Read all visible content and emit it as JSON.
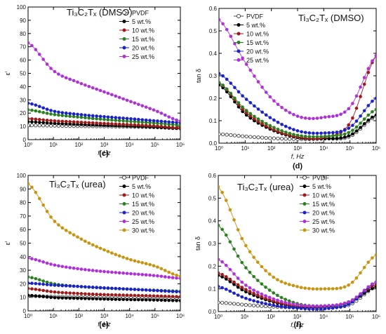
{
  "chart_data": [
    {
      "type": "scatter",
      "panel_label": "(c)",
      "title": "Ti₃C₂Tₓ (DMSO)",
      "xlabel": "f, Hz",
      "ylabel": "ε′",
      "x_scale": "log",
      "xlim": [
        1,
        1000000
      ],
      "ylim": [
        0,
        100
      ],
      "yticks": [
        0,
        10,
        20,
        30,
        40,
        50,
        60,
        70,
        80,
        90,
        100
      ],
      "xtick_labels": [
        "10⁰",
        "10¹",
        "10²",
        "10³",
        "10⁴",
        "10⁵",
        "10⁶"
      ],
      "legend_position": "top-right",
      "series": [
        {
          "name": "PVDF",
          "color": "#444444",
          "marker": "open",
          "x": [
            1,
            10,
            100,
            1000,
            10000,
            100000,
            1000000
          ],
          "y": [
            10.8,
            10.5,
            10.2,
            10.0,
            9.7,
            9.3,
            8.5
          ]
        },
        {
          "name": "5 wt.%",
          "color": "#000000",
          "marker": "filled",
          "x": [
            1,
            10,
            100,
            1000,
            10000,
            100000,
            1000000
          ],
          "y": [
            13.5,
            12.3,
            11.5,
            10.8,
            10.2,
            9.5,
            8.5
          ]
        },
        {
          "name": "10 wt.%",
          "color": "#a01818",
          "marker": "filled",
          "x": [
            1,
            10,
            100,
            1000,
            10000,
            100000,
            1000000
          ],
          "y": [
            15.8,
            14.2,
            13.2,
            12.2,
            11.3,
            10.3,
            8.8
          ]
        },
        {
          "name": "15 wt.%",
          "color": "#2a7f1f",
          "marker": "filled",
          "x": [
            1,
            10,
            100,
            1000,
            10000,
            100000,
            1000000
          ],
          "y": [
            22.5,
            19.0,
            17.0,
            15.2,
            13.8,
            12.5,
            11.0
          ]
        },
        {
          "name": "20 wt.%",
          "color": "#1a22c8",
          "marker": "filled",
          "x": [
            1,
            10,
            100,
            1000,
            10000,
            100000,
            1000000
          ],
          "y": [
            27.5,
            21.5,
            19.0,
            17.3,
            15.8,
            14.2,
            12.8
          ]
        },
        {
          "name": "25 wt.%",
          "color": "#b030d8",
          "marker": "filled",
          "x": [
            1,
            10,
            100,
            1000,
            10000,
            100000,
            1000000
          ],
          "y": [
            73.0,
            52.0,
            43.0,
            36.0,
            29.0,
            22.0,
            14.0
          ]
        }
      ]
    },
    {
      "type": "scatter",
      "panel_label": "(d)",
      "title": "Ti₃C₂Tₓ (DMSO)",
      "xlabel": "f, Hz",
      "ylabel": "tan δ",
      "x_scale": "log",
      "xlim": [
        1,
        1000000
      ],
      "ylim": [
        0,
        0.6
      ],
      "yticks": [
        0.0,
        0.1,
        0.2,
        0.3,
        0.4,
        0.5,
        0.6
      ],
      "ytick_labels": [
        "0.0",
        "0.1",
        "0.2",
        "0.3",
        "0.4",
        "0.5",
        "0.6"
      ],
      "xtick_labels": [
        "10⁰",
        "10¹",
        "10²",
        "10³",
        "10⁴",
        "10⁵",
        "10⁶"
      ],
      "legend_position": "top-left",
      "series": [
        {
          "name": "PVDF",
          "color": "#444444",
          "marker": "open",
          "x": [
            1,
            10,
            100,
            1000,
            10000,
            100000,
            1000000
          ],
          "y": [
            0.04,
            0.03,
            0.022,
            0.018,
            0.02,
            0.03,
            0.12
          ]
        },
        {
          "name": "5 wt.%",
          "color": "#000000",
          "marker": "filled",
          "x": [
            1,
            10,
            100,
            1000,
            10000,
            100000,
            1000000
          ],
          "y": [
            0.26,
            0.13,
            0.06,
            0.025,
            0.02,
            0.035,
            0.125
          ]
        },
        {
          "name": "10 wt.%",
          "color": "#a01818",
          "marker": "filled",
          "x": [
            1,
            10,
            100,
            1000,
            10000,
            100000,
            1000000
          ],
          "y": [
            0.27,
            0.14,
            0.065,
            0.028,
            0.025,
            0.09,
            0.39
          ]
        },
        {
          "name": "15 wt.%",
          "color": "#2a7f1f",
          "marker": "filled",
          "x": [
            1,
            10,
            100,
            1000,
            10000,
            100000,
            1000000
          ],
          "y": [
            0.27,
            0.15,
            0.075,
            0.035,
            0.03,
            0.05,
            0.15
          ]
        },
        {
          "name": "20 wt.%",
          "color": "#1a22c8",
          "marker": "filled",
          "x": [
            1,
            10,
            100,
            1000,
            10000,
            100000,
            1000000
          ],
          "y": [
            0.31,
            0.2,
            0.11,
            0.055,
            0.045,
            0.07,
            0.2
          ]
        },
        {
          "name": "25 wt.%",
          "color": "#b030d8",
          "marker": "filled",
          "x": [
            1,
            10,
            100,
            1000,
            10000,
            100000,
            1000000
          ],
          "y": [
            0.55,
            0.36,
            0.2,
            0.12,
            0.115,
            0.16,
            0.39
          ]
        }
      ]
    },
    {
      "type": "scatter",
      "panel_label": "(e)",
      "title": "Ti₃C₂Tₓ (urea)",
      "xlabel": "f, Hz",
      "ylabel": "ε′",
      "x_scale": "log",
      "xlim": [
        1,
        1000000
      ],
      "ylim": [
        0,
        100
      ],
      "yticks": [
        0,
        10,
        20,
        30,
        40,
        50,
        60,
        70,
        80,
        90,
        100
      ],
      "xtick_labels": [
        "10⁰",
        "10¹",
        "10²",
        "10³",
        "10⁴",
        "10⁵",
        "10⁶"
      ],
      "legend_position": "top-right",
      "series": [
        {
          "name": "PVDF",
          "color": "#444444",
          "marker": "open",
          "x": [
            1,
            10,
            100,
            1000,
            10000,
            100000,
            1000000
          ],
          "y": [
            11.0,
            10.5,
            10.2,
            10.0,
            9.8,
            9.5,
            9.0
          ]
        },
        {
          "name": "5 wt.%",
          "color": "#000000",
          "marker": "filled",
          "x": [
            1,
            10,
            100,
            1000,
            10000,
            100000,
            1000000
          ],
          "y": [
            11.5,
            9.8,
            9.2,
            8.7,
            8.3,
            8.0,
            7.5
          ]
        },
        {
          "name": "10 wt.%",
          "color": "#a01818",
          "marker": "filled",
          "x": [
            1,
            10,
            100,
            1000,
            10000,
            100000,
            1000000
          ],
          "y": [
            16.5,
            14.0,
            12.8,
            12.0,
            11.5,
            11.0,
            10.5
          ]
        },
        {
          "name": "15 wt.%",
          "color": "#2a7f1f",
          "marker": "filled",
          "x": [
            1,
            10,
            100,
            1000,
            10000,
            100000,
            1000000
          ],
          "y": [
            25.0,
            20.0,
            18.0,
            16.8,
            16.0,
            15.2,
            14.5
          ]
        },
        {
          "name": "20 wt.%",
          "color": "#1a22c8",
          "marker": "filled",
          "x": [
            1,
            10,
            100,
            1000,
            10000,
            100000,
            1000000
          ],
          "y": [
            20.5,
            19.0,
            18.0,
            17.0,
            16.0,
            15.0,
            14.0
          ]
        },
        {
          "name": "25 wt.%",
          "color": "#b030d8",
          "marker": "filled",
          "x": [
            1,
            10,
            100,
            1000,
            10000,
            100000,
            1000000
          ],
          "y": [
            39.0,
            34.0,
            31.0,
            29.0,
            27.5,
            26.0,
            24.0
          ]
        },
        {
          "name": "30 wt.%",
          "color": "#c89410",
          "marker": "filled",
          "x": [
            1,
            10,
            100,
            1000,
            10000,
            100000,
            1000000
          ],
          "y": [
            94.0,
            67.0,
            54.0,
            45.0,
            38.0,
            33.0,
            25.5
          ]
        }
      ]
    },
    {
      "type": "scatter",
      "panel_label": "(f)",
      "title": "Ti₃C₂Tₓ (urea)",
      "xlabel": "f, Hz",
      "ylabel": "tan δ",
      "x_scale": "log",
      "xlim": [
        1,
        1000000
      ],
      "ylim": [
        0,
        0.6
      ],
      "yticks": [
        0.0,
        0.1,
        0.2,
        0.3,
        0.4,
        0.5,
        0.6
      ],
      "ytick_labels": [
        "0.0",
        "0.1",
        "0.2",
        "0.3",
        "0.4",
        "0.5",
        "0.6"
      ],
      "xtick_labels": [
        "10⁰",
        "10¹",
        "10²",
        "10³",
        "10⁴",
        "10⁵",
        "10⁶"
      ],
      "legend_position": "top-right",
      "series": [
        {
          "name": "PVDF",
          "color": "#444444",
          "marker": "open",
          "x": [
            1,
            10,
            100,
            1000,
            10000,
            100000,
            1000000
          ],
          "y": [
            0.04,
            0.03,
            0.022,
            0.018,
            0.02,
            0.03,
            0.11
          ]
        },
        {
          "name": "5 wt.%",
          "color": "#000000",
          "marker": "filled",
          "x": [
            1,
            10,
            100,
            1000,
            10000,
            100000,
            1000000
          ],
          "y": [
            0.16,
            0.09,
            0.045,
            0.02,
            0.02,
            0.04,
            0.11
          ]
        },
        {
          "name": "10 wt.%",
          "color": "#a01818",
          "marker": "filled",
          "x": [
            1,
            10,
            100,
            1000,
            10000,
            100000,
            1000000
          ],
          "y": [
            0.17,
            0.1,
            0.05,
            0.025,
            0.022,
            0.045,
            0.12
          ]
        },
        {
          "name": "15 wt.%",
          "color": "#2a7f1f",
          "marker": "filled",
          "x": [
            1,
            10,
            100,
            1000,
            10000,
            100000,
            1000000
          ],
          "y": [
            0.38,
            0.2,
            0.09,
            0.035,
            0.025,
            0.04,
            0.13
          ]
        },
        {
          "name": "20 wt.%",
          "color": "#1a22c8",
          "marker": "filled",
          "x": [
            1,
            10,
            100,
            1000,
            10000,
            100000,
            1000000
          ],
          "y": [
            0.11,
            0.06,
            0.03,
            0.015,
            0.012,
            0.035,
            0.13
          ]
        },
        {
          "name": "25 wt.%",
          "color": "#b030d8",
          "marker": "filled",
          "x": [
            1,
            10,
            100,
            1000,
            10000,
            100000,
            1000000
          ],
          "y": [
            0.23,
            0.12,
            0.06,
            0.03,
            0.025,
            0.045,
            0.13
          ]
        },
        {
          "name": "30 wt.%",
          "color": "#c89410",
          "marker": "filled",
          "x": [
            1,
            10,
            100,
            1000,
            10000,
            100000,
            1000000
          ],
          "y": [
            0.55,
            0.3,
            0.16,
            0.11,
            0.1,
            0.12,
            0.25
          ]
        }
      ]
    }
  ]
}
